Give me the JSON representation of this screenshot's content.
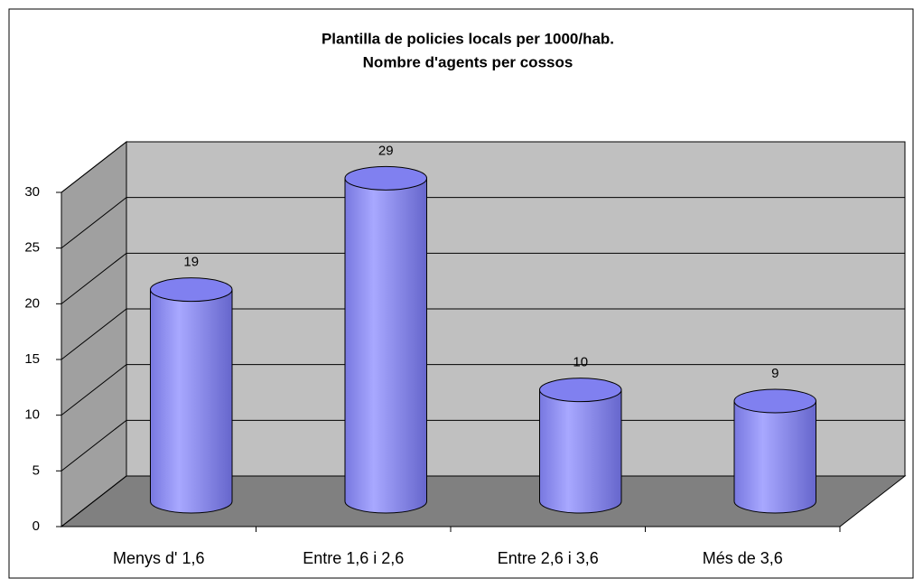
{
  "chart_data": {
    "type": "bar",
    "title": "Plantilla de policies locals per 1000/hab.",
    "subtitle": "Nombre d'agents per cossos",
    "categories": [
      "Menys d' 1,6",
      "Entre 1,6 i 2,6",
      "Entre 2,6 i 3,6",
      "Més de 3,6"
    ],
    "values": [
      19,
      29,
      10,
      9
    ],
    "color": "#9999ff",
    "ylim": [
      0,
      30
    ],
    "yticks": [
      0,
      5,
      10,
      15,
      20,
      25,
      30
    ],
    "grid": true
  }
}
